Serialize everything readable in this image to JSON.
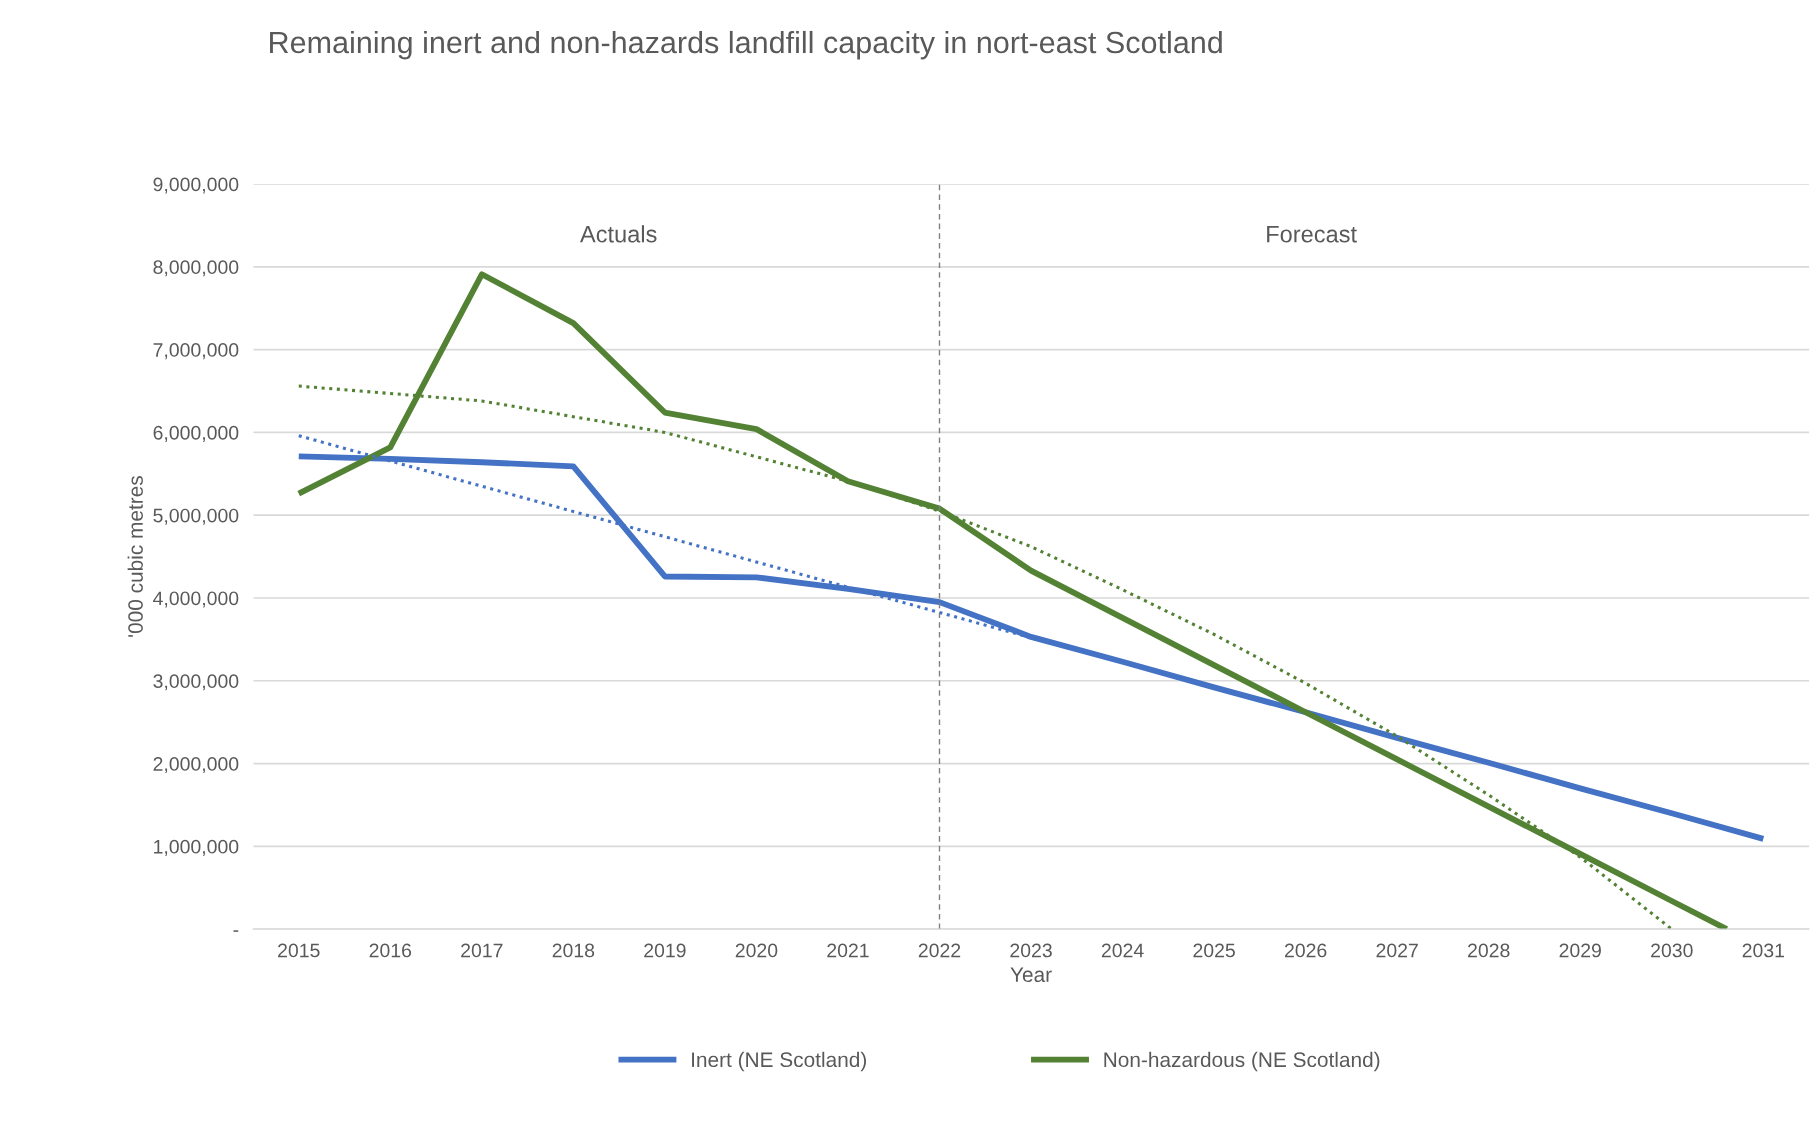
{
  "chart_data": {
    "type": "line",
    "title": "Remaining inert and non-hazards landfill capacity in nort-east Scotland",
    "xlabel": "Year",
    "ylabel": "'000 cubic metres",
    "x": [
      2015,
      2016,
      2017,
      2018,
      2019,
      2020,
      2021,
      2022,
      2023,
      2024,
      2025,
      2026,
      2027,
      2028,
      2029,
      2030,
      2031
    ],
    "series": [
      {
        "name": "Inert (NE Scotland)",
        "color": "#4472c4",
        "values": [
          5710000,
          5680000,
          5640000,
          5590000,
          4260000,
          4250000,
          4110000,
          3950000,
          3530000,
          3230000,
          2920000,
          2620000,
          2310000,
          2010000,
          1700000,
          1400000,
          1090000
        ]
      },
      {
        "name": "Non-hazardous (NE Scotland)",
        "color": "#548235",
        "x": [
          2015,
          2016,
          2017,
          2018,
          2019,
          2020,
          2021,
          2022,
          2023,
          2024,
          2025,
          2026,
          2027,
          2028,
          2029,
          2030,
          2030.6
        ],
        "values": [
          5260000,
          5820000,
          7910000,
          7320000,
          6240000,
          6040000,
          5410000,
          5080000,
          4330000,
          3760000,
          3190000,
          2620000,
          2050000,
          1480000,
          910000,
          340000,
          0
        ]
      },
      {
        "color": "#4472c4",
        "line_style": "dotted",
        "x": [
          2015,
          2023
        ],
        "values": [
          5960000,
          3520000
        ]
      },
      {
        "color": "#548235",
        "line_style": "dotted",
        "x": [
          2015,
          2017,
          2019,
          2021,
          2022,
          2023,
          2024,
          2025,
          2026,
          2027,
          2028,
          2029,
          2030
        ],
        "values": [
          6560000,
          6380000,
          6000000,
          5410000,
          5050000,
          4620000,
          4100000,
          3560000,
          2970000,
          2330000,
          1620000,
          870000,
          0
        ]
      }
    ],
    "xlim": [
      2014.5,
      2031.5
    ],
    "xticks": [
      2015,
      2016,
      2017,
      2018,
      2019,
      2020,
      2021,
      2022,
      2023,
      2024,
      2025,
      2026,
      2027,
      2028,
      2029,
      2030,
      2031
    ],
    "ylim": [
      0,
      9000000
    ],
    "yticks": [
      {
        "value": 0,
        "label": "-"
      },
      {
        "value": 1000000,
        "label": "1,000,000"
      },
      {
        "value": 2000000,
        "label": "2,000,000"
      },
      {
        "value": 3000000,
        "label": "3,000,000"
      },
      {
        "value": 4000000,
        "label": "4,000,000"
      },
      {
        "value": 5000000,
        "label": "5,000,000"
      },
      {
        "value": 6000000,
        "label": "6,000,000"
      },
      {
        "value": 7000000,
        "label": "7,000,000"
      },
      {
        "value": 8000000,
        "label": "8,000,000"
      },
      {
        "value": 9000000,
        "label": "9,000,000"
      }
    ],
    "ref_lines": [
      {
        "axis": "x",
        "value": 2022,
        "color": "#808080",
        "line_style": "dashed"
      }
    ],
    "annotations": [
      "Actuals",
      "Forecast"
    ],
    "grid": "y",
    "legend": "bottom",
    "marker": "none",
    "line_style": "solid"
  }
}
